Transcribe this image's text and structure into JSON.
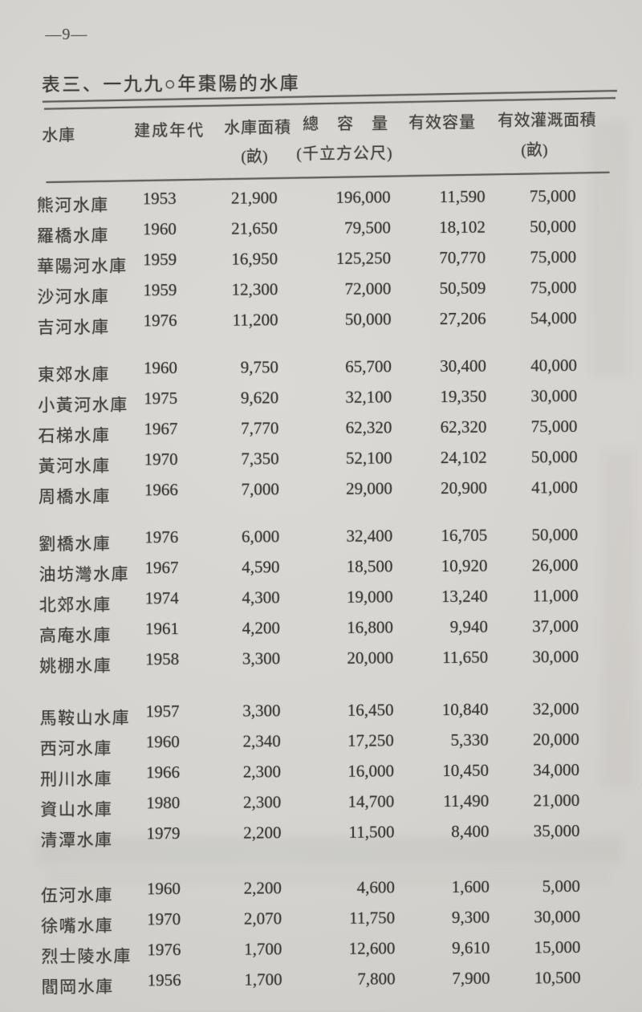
{
  "page": {
    "page_number": "—9—",
    "title": "表三、一九九○年棗陽的水庫"
  },
  "table": {
    "headers": {
      "reservoir": "水庫",
      "year_built": "建成年代",
      "area": "水庫面積",
      "area_unit": "(畝)",
      "total_capacity": "總 容 量",
      "capacity_unit": "(千立方公尺)",
      "effective_capacity": "有效容量",
      "irrigated_area": "有效灌溉面積",
      "irrigated_unit": "(畝)"
    },
    "groups": [
      [
        {
          "name": "熊河水庫",
          "year": "1953",
          "area": "21,900",
          "total": "196,000",
          "effective": "11,590",
          "irrigated": "75,000"
        },
        {
          "name": "羅橋水庫",
          "year": "1960",
          "area": "21,650",
          "total": "79,500",
          "effective": "18,102",
          "irrigated": "50,000"
        },
        {
          "name": "華陽河水庫",
          "year": "1959",
          "area": "16,950",
          "total": "125,250",
          "effective": "70,770",
          "irrigated": "75,000"
        },
        {
          "name": "沙河水庫",
          "year": "1959",
          "area": "12,300",
          "total": "72,000",
          "effective": "50,509",
          "irrigated": "75,000"
        },
        {
          "name": "吉河水庫",
          "year": "1976",
          "area": "11,200",
          "total": "50,000",
          "effective": "27,206",
          "irrigated": "54,000"
        }
      ],
      [
        {
          "name": "東郊水庫",
          "year": "1960",
          "area": "9,750",
          "total": "65,700",
          "effective": "30,400",
          "irrigated": "40,000"
        },
        {
          "name": "小黃河水庫",
          "year": "1975",
          "area": "9,620",
          "total": "32,100",
          "effective": "19,350",
          "irrigated": "30,000"
        },
        {
          "name": "石梯水庫",
          "year": "1967",
          "area": "7,770",
          "total": "62,320",
          "effective": "62,320",
          "irrigated": "75,000"
        },
        {
          "name": "黃河水庫",
          "year": "1970",
          "area": "7,350",
          "total": "52,100",
          "effective": "24,102",
          "irrigated": "50,000"
        },
        {
          "name": "周橋水庫",
          "year": "1966",
          "area": "7,000",
          "total": "29,000",
          "effective": "20,900",
          "irrigated": "41,000"
        }
      ],
      [
        {
          "name": "劉橋水庫",
          "year": "1976",
          "area": "6,000",
          "total": "32,400",
          "effective": "16,705",
          "irrigated": "50,000"
        },
        {
          "name": "油坊灣水庫",
          "year": "1967",
          "area": "4,590",
          "total": "18,500",
          "effective": "10,920",
          "irrigated": "26,000"
        },
        {
          "name": "北郊水庫",
          "year": "1974",
          "area": "4,300",
          "total": "19,000",
          "effective": "13,240",
          "irrigated": "11,000"
        },
        {
          "name": "高庵水庫",
          "year": "1961",
          "area": "4,200",
          "total": "16,800",
          "effective": "9,940",
          "irrigated": "37,000"
        },
        {
          "name": "姚棚水庫",
          "year": "1958",
          "area": "3,300",
          "total": "20,000",
          "effective": "11,650",
          "irrigated": "30,000"
        }
      ],
      [
        {
          "name": "馬鞍山水庫",
          "year": "1957",
          "area": "3,300",
          "total": "16,450",
          "effective": "10,840",
          "irrigated": "32,000"
        },
        {
          "name": "西河水庫",
          "year": "1960",
          "area": "2,340",
          "total": "17,250",
          "effective": "5,330",
          "irrigated": "20,000"
        },
        {
          "name": "刑川水庫",
          "year": "1966",
          "area": "2,300",
          "total": "16,000",
          "effective": "10,450",
          "irrigated": "34,000"
        },
        {
          "name": "資山水庫",
          "year": "1980",
          "area": "2,300",
          "total": "14,700",
          "effective": "11,490",
          "irrigated": "21,000"
        },
        {
          "name": "清潭水庫",
          "year": "1979",
          "area": "2,200",
          "total": "11,500",
          "effective": "8,400",
          "irrigated": "35,000"
        }
      ],
      [
        {
          "name": "伍河水庫",
          "year": "1960",
          "area": "2,200",
          "total": "4,600",
          "effective": "1,600",
          "irrigated": "5,000"
        },
        {
          "name": "徐嘴水庫",
          "year": "1970",
          "area": "2,070",
          "total": "11,750",
          "effective": "9,300",
          "irrigated": "30,000"
        },
        {
          "name": "烈士陵水庫",
          "year": "1976",
          "area": "1,700",
          "total": "12,600",
          "effective": "9,610",
          "irrigated": "15,000"
        },
        {
          "name": "閻岡水庫",
          "year": "1956",
          "area": "1,700",
          "total": "7,800",
          "effective": "7,900",
          "irrigated": "10,500"
        }
      ]
    ]
  },
  "colors": {
    "paper": "#d6d4d0",
    "ink": "#3e3c38",
    "rule": "#605e58"
  }
}
